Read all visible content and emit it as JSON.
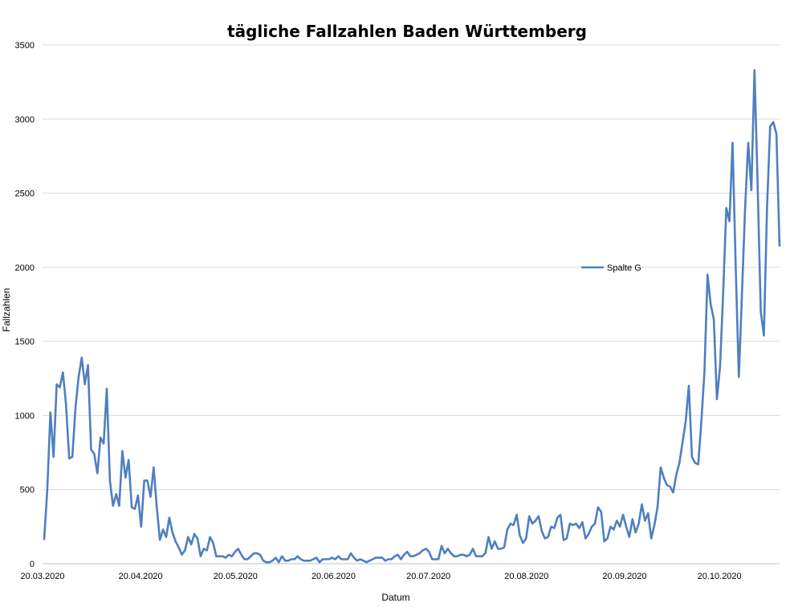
{
  "chart_data": {
    "type": "line",
    "title": "tägliche Fallzahlen Baden Württemberg",
    "xlabel": "Datum",
    "ylabel": "Fallzahlen",
    "ylim": [
      0,
      3500
    ],
    "yticks": [
      0,
      500,
      1000,
      1500,
      2000,
      2500,
      3000,
      3500
    ],
    "xticks": [
      "20.03.2020",
      "20.04.2020",
      "20.05.2020",
      "20.06.2020",
      "20.07.2020",
      "20.08.2020",
      "20.09.2020",
      "20.10.2020"
    ],
    "x_start": "20.03.2020",
    "x_end": "08.11.2020",
    "grid": true,
    "legend": "right",
    "series": [
      {
        "name": "Spalte G",
        "color": "#4f7fbf",
        "values": [
          160,
          500,
          1020,
          720,
          1210,
          1190,
          1290,
          1070,
          710,
          720,
          1050,
          1260,
          1390,
          1210,
          1340,
          770,
          740,
          610,
          850,
          810,
          1180,
          560,
          390,
          470,
          390,
          760,
          580,
          700,
          380,
          370,
          460,
          250,
          560,
          560,
          450,
          650,
          380,
          160,
          230,
          180,
          310,
          210,
          150,
          110,
          60,
          90,
          180,
          130,
          200,
          170,
          50,
          100,
          90,
          180,
          140,
          50,
          50,
          50,
          40,
          60,
          50,
          80,
          100,
          60,
          30,
          30,
          50,
          70,
          70,
          60,
          20,
          10,
          10,
          20,
          40,
          10,
          50,
          20,
          20,
          30,
          30,
          50,
          30,
          20,
          20,
          20,
          30,
          40,
          10,
          30,
          30,
          30,
          40,
          30,
          50,
          30,
          30,
          30,
          70,
          40,
          20,
          30,
          20,
          10,
          20,
          30,
          40,
          40,
          40,
          20,
          30,
          30,
          50,
          60,
          30,
          60,
          80,
          50,
          50,
          60,
          70,
          90,
          100,
          80,
          30,
          30,
          30,
          120,
          70,
          100,
          70,
          50,
          50,
          60,
          60,
          50,
          60,
          100,
          50,
          50,
          50,
          70,
          180,
          100,
          150,
          100,
          100,
          110,
          230,
          270,
          260,
          330,
          190,
          140,
          170,
          320,
          270,
          290,
          320,
          220,
          170,
          180,
          250,
          240,
          310,
          330,
          160,
          170,
          270,
          260,
          270,
          240,
          280,
          170,
          200,
          250,
          270,
          380,
          350,
          150,
          170,
          250,
          230,
          290,
          250,
          330,
          250,
          180,
          300,
          210,
          270,
          400,
          290,
          340,
          170,
          260,
          380,
          650,
          580,
          530,
          520,
          480,
          600,
          680,
          820,
          960,
          1200,
          720,
          680,
          670,
          960,
          1300,
          1950,
          1750,
          1650,
          1110,
          1330,
          1830,
          2400,
          2310,
          2840,
          2000,
          1260,
          1820,
          2400,
          2840,
          2520,
          3330,
          2560,
          1700,
          1540,
          2400,
          2950,
          2980,
          2900,
          2140
        ]
      }
    ]
  }
}
